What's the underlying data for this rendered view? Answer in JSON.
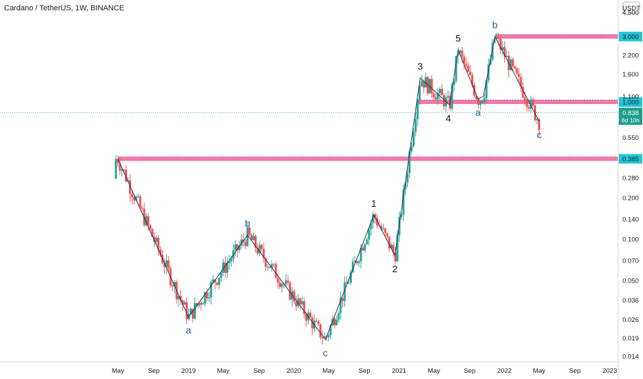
{
  "header": {
    "title": "Cardano / TetherUS, 1W, BINANCE",
    "currency": "USDT"
  },
  "colors": {
    "up": "#26a69a",
    "down": "#ef5350",
    "wave": "#2a2e5c",
    "zone": "#f06292",
    "label_dark": "#131722",
    "label_blue": "#1e5a99",
    "tag": "#22c5d6",
    "price_tag": "#1f9e8a"
  },
  "chart_data": {
    "type": "candlestick",
    "scale": "log",
    "symbol": "Cardano / TetherUS",
    "interval": "1W",
    "exchange": "BINANCE",
    "y_ticks": [
      "0.014",
      "0.019",
      "0.026",
      "0.036",
      "0.050",
      "0.070",
      "0.100",
      "0.140",
      "0.200",
      "0.280",
      "0.385",
      "0.550",
      "0.838",
      "1.000",
      "1.100",
      "1.600",
      "2.200",
      "3.000",
      "4.500"
    ],
    "x_ticks": [
      "May",
      "Sep",
      "2019",
      "May",
      "Sep",
      "2020",
      "May",
      "Sep",
      "2021",
      "May",
      "Sep",
      "2022",
      "May",
      "Sep",
      "2023"
    ],
    "ylim": [
      0.014,
      4.5
    ],
    "xlim": [
      2018.25,
      2023.0
    ],
    "wave_points": [
      {
        "x": 2018.25,
        "y": 0.385
      },
      {
        "x": 2018.92,
        "y": 0.027,
        "label": "a"
      },
      {
        "x": 2019.48,
        "y": 0.107,
        "label": "b"
      },
      {
        "x": 2020.22,
        "y": 0.0185,
        "label": "c"
      },
      {
        "x": 2020.68,
        "y": 0.15,
        "label": "1"
      },
      {
        "x": 2020.88,
        "y": 0.076,
        "label": "2"
      },
      {
        "x": 2021.12,
        "y": 1.5,
        "label": "3"
      },
      {
        "x": 2021.4,
        "y": 0.95,
        "label": "4"
      },
      {
        "x": 2021.48,
        "y": 2.4,
        "label": "5"
      },
      {
        "x": 2021.67,
        "y": 1.05,
        "label": "a"
      },
      {
        "x": 2021.72,
        "y": 1.1
      },
      {
        "x": 2021.83,
        "y": 3.0,
        "label": "b"
      },
      {
        "x": 2022.25,
        "y": 0.72,
        "label": "c"
      }
    ],
    "zones": [
      {
        "price": 3.0,
        "label": "3.000",
        "x_start": 2021.83
      },
      {
        "price": 1.0,
        "label": "1.000",
        "x_start": 2021.1
      },
      {
        "price": 0.385,
        "label": "0.385",
        "x_start": 2018.25
      }
    ],
    "current_price": {
      "value": 0.838,
      "label": "0.838",
      "countdown": "6d 10h"
    }
  }
}
